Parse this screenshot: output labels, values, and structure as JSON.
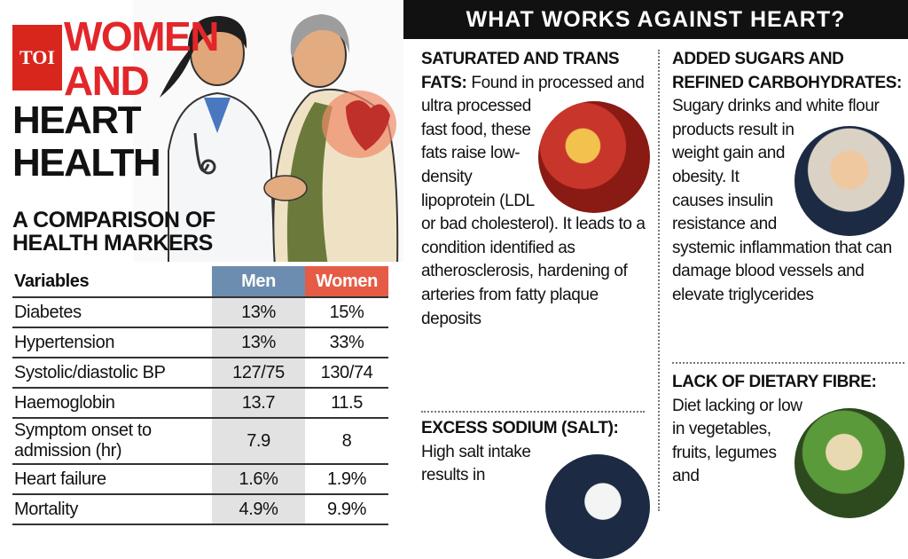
{
  "header": {
    "logo": "TOI",
    "title_red": [
      "WOMEN",
      "AND"
    ],
    "title_black": [
      "HEART",
      "HEALTH"
    ]
  },
  "table": {
    "heading": [
      "A COMPARISON OF",
      "HEALTH MARKERS"
    ],
    "columns": [
      "Variables",
      "Men",
      "Women"
    ],
    "rows": [
      [
        "Diabetes",
        "13%",
        "15%"
      ],
      [
        "Hypertension",
        "13%",
        "33%"
      ],
      [
        "Systolic/diastolic BP",
        "127/75",
        "130/74"
      ],
      [
        "Haemoglobin",
        "13.7",
        "11.5"
      ],
      [
        "Symptom onset to admission (hr)",
        "7.9",
        "8"
      ],
      [
        "Heart failure",
        "1.6%",
        "1.9%"
      ],
      [
        "Mortality",
        "4.9%",
        "9.9%"
      ]
    ]
  },
  "panel": {
    "title": "WHAT WORKS AGAINST HEART?",
    "sections": [
      {
        "heading": "SATURATED AND TRANS FATS:",
        "body": "Found in processed and ultra processed fast food, these fats raise low-density lipoprotein (LDL or bad cholesterol). It leads to a condition identified as atherosclerosis, hardening of arteries from fatty plaque deposits"
      },
      {
        "heading": "EXCESS SODIUM (SALT):",
        "body": "High salt intake results in"
      },
      {
        "heading": "ADDED SUGARS AND REFINED CARBOHYDRATES:",
        "body": "Sugary drinks and white flour products result in weight gain and obesity. It causes insulin resistance and systemic inflammation that can damage blood vessels and elevate triglycerides"
      },
      {
        "heading": "LACK OF DIETARY FIBRE:",
        "body": "Diet lacking or low in vegetables, fruits, legumes and"
      }
    ]
  }
}
